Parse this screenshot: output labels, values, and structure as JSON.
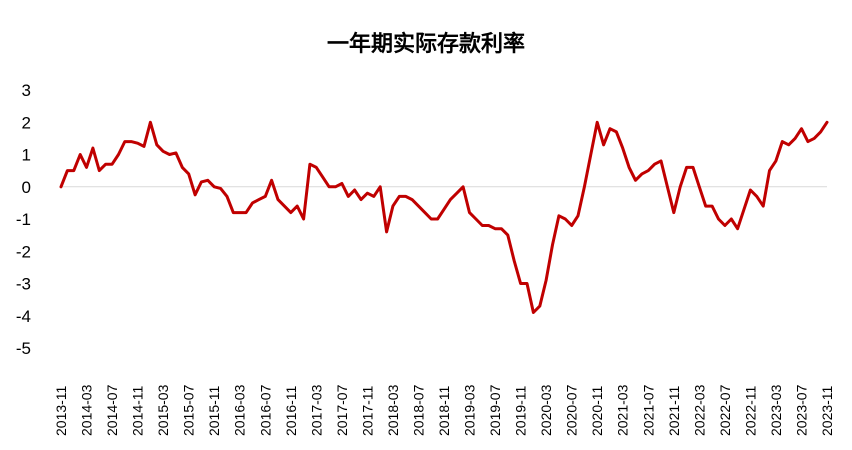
{
  "chart_data": {
    "type": "line",
    "title": "一年期实际存款利率",
    "xlabel": "",
    "ylabel": "",
    "ylim": [
      -5,
      3
    ],
    "yticks": [
      "3",
      "2",
      "1",
      "0",
      "-1",
      "-2",
      "-3",
      "-4",
      "-5"
    ],
    "grid": false,
    "legend": "none",
    "line_color": "#c00000",
    "tick_labels": [
      "2013-11",
      "2014-03",
      "2014-07",
      "2014-11",
      "2015-03",
      "2015-07",
      "2015-11",
      "2016-03",
      "2016-07",
      "2016-11",
      "2017-03",
      "2017-07",
      "2017-11",
      "2018-03",
      "2018-07",
      "2018-11",
      "2019-03",
      "2019-07",
      "2019-11",
      "2020-03",
      "2020-07",
      "2020-11",
      "2021-03",
      "2021-07",
      "2021-11",
      "2022-03",
      "2022-07",
      "2022-11",
      "2023-03",
      "2023-07",
      "2023-11"
    ],
    "series": [
      {
        "values": [
          0.0,
          0.5,
          0.5,
          1.0,
          0.6,
          1.2,
          0.5,
          0.7,
          0.7,
          1.0,
          1.4,
          1.4,
          1.35,
          1.25,
          2.0,
          1.3,
          1.1,
          1.0,
          1.05,
          0.6,
          0.4,
          -0.25,
          0.15,
          0.2,
          0.0,
          -0.05,
          -0.3,
          -0.8,
          -0.8,
          -0.8,
          -0.5,
          -0.4,
          -0.3,
          0.2,
          -0.4,
          -0.6,
          -0.8,
          -0.6,
          -1.0,
          0.7,
          0.6,
          0.3,
          0.0,
          0.0,
          0.1,
          -0.3,
          -0.1,
          -0.4,
          -0.2,
          -0.3,
          0.0,
          -1.4,
          -0.6,
          -0.3,
          -0.3,
          -0.4,
          -0.6,
          -0.8,
          -1.0,
          -1.0,
          -0.7,
          -0.4,
          -0.2,
          0.0,
          -0.8,
          -1.0,
          -1.2,
          -1.2,
          -1.3,
          -1.3,
          -1.5,
          -2.3,
          -3.0,
          -3.0,
          -3.9,
          -3.7,
          -2.9,
          -1.8,
          -0.9,
          -1.0,
          -1.2,
          -0.9,
          0.0,
          1.0,
          2.0,
          1.3,
          1.8,
          1.7,
          1.2,
          0.6,
          0.2,
          0.4,
          0.5,
          0.7,
          0.8,
          0.0,
          -0.8,
          0.0,
          0.6,
          0.6,
          0.0,
          -0.6,
          -0.6,
          -1.0,
          -1.2,
          -1.0,
          -1.3,
          -0.7,
          -0.1,
          -0.3,
          -0.6,
          0.5,
          0.8,
          1.4,
          1.3,
          1.5,
          1.8,
          1.4,
          1.5,
          1.7,
          2.0
        ]
      }
    ]
  }
}
